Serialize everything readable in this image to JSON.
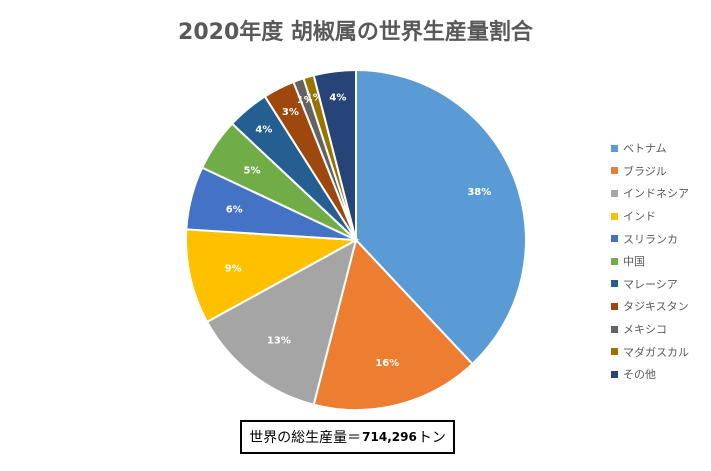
{
  "chart_data": {
    "type": "pie",
    "title": "2020年度 胡椒属の世界生産量割合",
    "categories": [
      "ベトナム",
      "ブラジル",
      "インドネシア",
      "インド",
      "スリランカ",
      "中国",
      "マレーシア",
      "タジキスタン",
      "メキシコ",
      "マダガスカル",
      "その他"
    ],
    "values": [
      38,
      16,
      13,
      9,
      6,
      5,
      4,
      3,
      1,
      1,
      4
    ],
    "data_labels": [
      "38%",
      "16%",
      "13%",
      "9%",
      "6%",
      "5%",
      "4%",
      "3%",
      "1%",
      "1%",
      "4%"
    ],
    "colors": [
      "#5B9BD5",
      "#ED7D31",
      "#A5A5A5",
      "#FFC000",
      "#4472C4",
      "#70AD47",
      "#255E91",
      "#9E480E",
      "#636363",
      "#997300",
      "#264478"
    ],
    "legend_position": "right"
  },
  "annotation": {
    "prefix": "世界の総生産量＝",
    "value": "714,296",
    "suffix": "トン"
  }
}
